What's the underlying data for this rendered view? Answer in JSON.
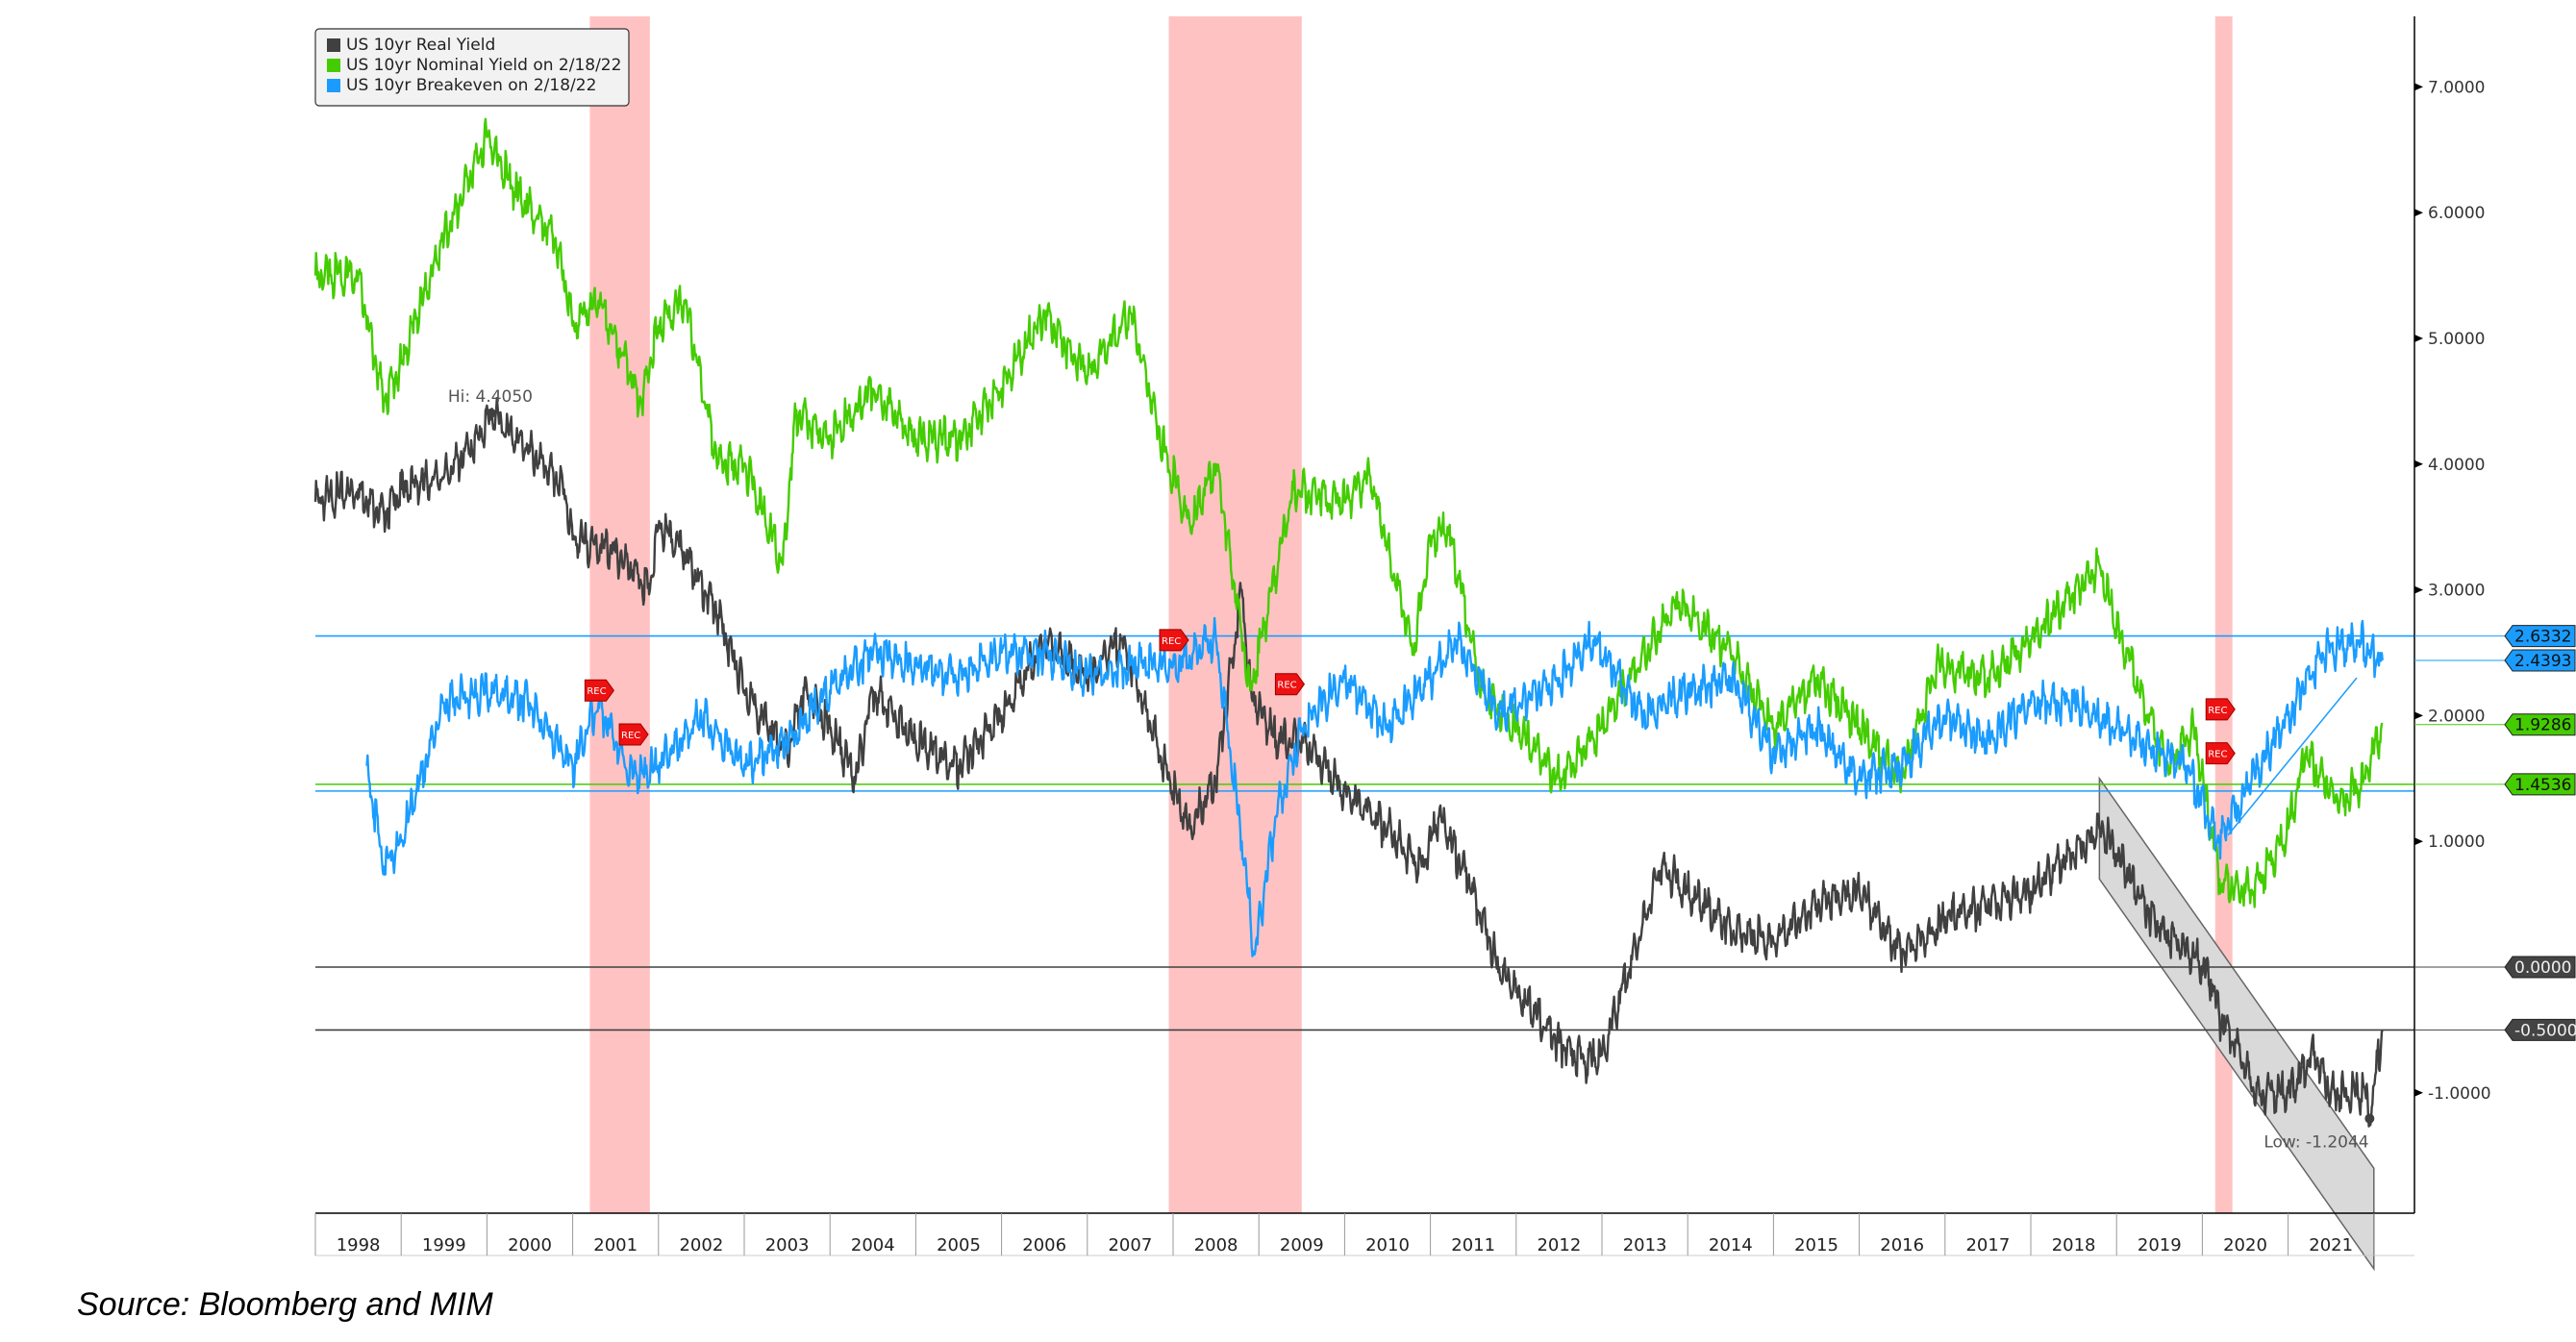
{
  "chart_data": {
    "type": "line",
    "title": "",
    "xlabel": "",
    "ylabel": "",
    "xlim": [
      1998,
      2022.3
    ],
    "ylim": [
      -1.96,
      7.56
    ],
    "y_ticks": [
      7,
      6,
      5,
      4,
      3,
      2,
      1,
      -1
    ],
    "y_tick_labels": [
      "7.0000",
      "6.0000",
      "5.0000",
      "4.0000",
      "3.0000",
      "2.0000",
      "1.0000",
      "-1.0000"
    ],
    "x_tick_labels": [
      "1998",
      "1999",
      "2000",
      "2001",
      "2002",
      "2003",
      "2004",
      "2005",
      "2006",
      "2007",
      "2008",
      "2009",
      "2010",
      "2011",
      "2012",
      "2013",
      "2014",
      "2015",
      "2016",
      "2017",
      "2018",
      "2019",
      "2020",
      "2021"
    ],
    "legend": {
      "placement": "top-left",
      "entries": [
        {
          "label": "US 10yr Real Yield",
          "color": "#404040"
        },
        {
          "label": "US 10yr Nominal Yield on 2/18/22",
          "color": "#44cc00"
        },
        {
          "label": "US 10yr Breakeven on 2/18/22",
          "color": "#1a9cff"
        }
      ]
    },
    "series": [
      {
        "name": "US 10yr Real Yield",
        "color": "#404040",
        "points": [
          [
            1998,
            3.7
          ],
          [
            1998.5,
            3.8
          ],
          [
            1998.8,
            3.6
          ],
          [
            1999,
            3.8
          ],
          [
            1999.5,
            3.9
          ],
          [
            1999.9,
            4.2
          ],
          [
            2000.05,
            4.405
          ],
          [
            2000.5,
            4.1
          ],
          [
            2000.9,
            3.8
          ],
          [
            2001,
            3.4
          ],
          [
            2001.5,
            3.3
          ],
          [
            2001.9,
            3.0
          ],
          [
            2002,
            3.5
          ],
          [
            2002.3,
            3.3
          ],
          [
            2002.7,
            2.8
          ],
          [
            2003,
            2.2
          ],
          [
            2003.5,
            1.7
          ],
          [
            2003.7,
            2.2
          ],
          [
            2004,
            1.9
          ],
          [
            2004.3,
            1.5
          ],
          [
            2004.5,
            2.2
          ],
          [
            2005,
            1.8
          ],
          [
            2005.5,
            1.6
          ],
          [
            2006,
            2.0
          ],
          [
            2006.5,
            2.6
          ],
          [
            2007,
            2.3
          ],
          [
            2007.4,
            2.6
          ],
          [
            2007.6,
            2.2
          ],
          [
            2008,
            1.4
          ],
          [
            2008.2,
            1.1
          ],
          [
            2008.5,
            1.5
          ],
          [
            2008.8,
            3.0
          ],
          [
            2008.9,
            2.2
          ],
          [
            2009.2,
            1.8
          ],
          [
            2009.5,
            1.8
          ],
          [
            2010,
            1.4
          ],
          [
            2010.5,
            1.1
          ],
          [
            2010.9,
            0.8
          ],
          [
            2011.1,
            1.2
          ],
          [
            2011.5,
            0.6
          ],
          [
            2011.8,
            0.0
          ],
          [
            2012,
            -0.2
          ],
          [
            2012.5,
            -0.6
          ],
          [
            2012.8,
            -0.75
          ],
          [
            2013,
            -0.7
          ],
          [
            2013.5,
            0.4
          ],
          [
            2013.7,
            0.8
          ],
          [
            2014,
            0.6
          ],
          [
            2014.5,
            0.3
          ],
          [
            2015,
            0.2
          ],
          [
            2015.5,
            0.5
          ],
          [
            2016,
            0.6
          ],
          [
            2016.5,
            0.1
          ],
          [
            2016.9,
            0.3
          ],
          [
            2017,
            0.4
          ],
          [
            2017.5,
            0.5
          ],
          [
            2018,
            0.6
          ],
          [
            2018.8,
            1.1
          ],
          [
            2019,
            0.9
          ],
          [
            2019.5,
            0.3
          ],
          [
            2019.9,
            0.1
          ],
          [
            2020.1,
            -0.1
          ],
          [
            2020.2,
            -0.4
          ],
          [
            2020.4,
            -0.6
          ],
          [
            2020.6,
            -1.0
          ],
          [
            2021,
            -1.0
          ],
          [
            2021.3,
            -0.7
          ],
          [
            2021.5,
            -1.0
          ],
          [
            2021.9,
            -1.0
          ],
          [
            2021.95,
            -1.2
          ],
          [
            2022.1,
            -0.5
          ]
        ]
      },
      {
        "name": "US 10yr Nominal Yield on 2/18/22",
        "color": "#44cc00",
        "points": [
          [
            1998,
            5.5
          ],
          [
            1998.5,
            5.5
          ],
          [
            1998.8,
            4.5
          ],
          [
            1999,
            4.8
          ],
          [
            1999.5,
            5.8
          ],
          [
            2000,
            6.6
          ],
          [
            2000.3,
            6.2
          ],
          [
            2000.8,
            5.8
          ],
          [
            2001,
            5.1
          ],
          [
            2001.3,
            5.3
          ],
          [
            2001.8,
            4.5
          ],
          [
            2002,
            5.1
          ],
          [
            2002.3,
            5.3
          ],
          [
            2002.7,
            4.0
          ],
          [
            2003,
            4.0
          ],
          [
            2003.45,
            3.2
          ],
          [
            2003.6,
            4.4
          ],
          [
            2004,
            4.2
          ],
          [
            2004.5,
            4.6
          ],
          [
            2005,
            4.2
          ],
          [
            2005.5,
            4.2
          ],
          [
            2006,
            4.6
          ],
          [
            2006.5,
            5.2
          ],
          [
            2007,
            4.7
          ],
          [
            2007.5,
            5.2
          ],
          [
            2007.9,
            4.1
          ],
          [
            2008.2,
            3.5
          ],
          [
            2008.5,
            4.0
          ],
          [
            2008.9,
            2.2
          ],
          [
            2009,
            2.5
          ],
          [
            2009.4,
            3.8
          ],
          [
            2010,
            3.7
          ],
          [
            2010.3,
            3.9
          ],
          [
            2010.8,
            2.5
          ],
          [
            2011,
            3.4
          ],
          [
            2011.2,
            3.5
          ],
          [
            2011.6,
            2.2
          ],
          [
            2012,
            1.9
          ],
          [
            2012.5,
            1.5
          ],
          [
            2013,
            1.9
          ],
          [
            2013.5,
            2.5
          ],
          [
            2013.9,
            2.9
          ],
          [
            2014.5,
            2.5
          ],
          [
            2015,
            1.9
          ],
          [
            2015.5,
            2.3
          ],
          [
            2016,
            1.9
          ],
          [
            2016.5,
            1.5
          ],
          [
            2016.9,
            2.4
          ],
          [
            2017.5,
            2.3
          ],
          [
            2018,
            2.6
          ],
          [
            2018.8,
            3.2
          ],
          [
            2019,
            2.7
          ],
          [
            2019.6,
            1.6
          ],
          [
            2019.9,
            1.9
          ],
          [
            2020.2,
            0.7
          ],
          [
            2020.6,
            0.6
          ],
          [
            2021,
            1.1
          ],
          [
            2021.2,
            1.7
          ],
          [
            2021.6,
            1.3
          ],
          [
            2021.9,
            1.5
          ],
          [
            2022.1,
            1.93
          ]
        ]
      },
      {
        "name": "US 10yr Breakeven on 2/18/22",
        "color": "#1a9cff",
        "points": [
          [
            1998.6,
            1.6
          ],
          [
            1998.8,
            0.8
          ],
          [
            1999,
            1.0
          ],
          [
            1999.5,
            2.1
          ],
          [
            2000,
            2.2
          ],
          [
            2000.5,
            2.1
          ],
          [
            2001,
            1.6
          ],
          [
            2001.3,
            2.1
          ],
          [
            2001.7,
            1.5
          ],
          [
            2002,
            1.6
          ],
          [
            2002.5,
            2.0
          ],
          [
            2003,
            1.6
          ],
          [
            2003.5,
            1.8
          ],
          [
            2004,
            2.2
          ],
          [
            2004.5,
            2.5
          ],
          [
            2005,
            2.4
          ],
          [
            2005.5,
            2.3
          ],
          [
            2006,
            2.5
          ],
          [
            2006.5,
            2.5
          ],
          [
            2007,
            2.3
          ],
          [
            2007.5,
            2.4
          ],
          [
            2008,
            2.4
          ],
          [
            2008.5,
            2.6
          ],
          [
            2008.8,
            1.0
          ],
          [
            2008.95,
            0.1
          ],
          [
            2009.2,
            1.2
          ],
          [
            2009.5,
            1.9
          ],
          [
            2010,
            2.3
          ],
          [
            2010.5,
            1.9
          ],
          [
            2011,
            2.3
          ],
          [
            2011.3,
            2.6
          ],
          [
            2011.8,
            2.0
          ],
          [
            2012.5,
            2.3
          ],
          [
            2012.9,
            2.6
          ],
          [
            2013.5,
            2.0
          ],
          [
            2014,
            2.2
          ],
          [
            2014.5,
            2.3
          ],
          [
            2015,
            1.7
          ],
          [
            2015.5,
            1.9
          ],
          [
            2016,
            1.5
          ],
          [
            2016.5,
            1.6
          ],
          [
            2017,
            2.0
          ],
          [
            2017.5,
            1.8
          ],
          [
            2018,
            2.1
          ],
          [
            2018.5,
            2.1
          ],
          [
            2019,
            1.9
          ],
          [
            2019.8,
            1.6
          ],
          [
            2020.2,
            1.0
          ],
          [
            2020.5,
            1.4
          ],
          [
            2021,
            2.0
          ],
          [
            2021.4,
            2.5
          ],
          [
            2021.8,
            2.6
          ],
          [
            2022.1,
            2.44
          ]
        ]
      }
    ],
    "recessions": [
      [
        2001.2,
        2001.9
      ],
      [
        2007.95,
        2009.5
      ],
      [
        2020.15,
        2020.35
      ]
    ],
    "rec_label": "REC",
    "rec_markers": [
      {
        "x": 2001.3,
        "y": 2.2,
        "series": "US 10yr Breakeven on 2/18/22"
      },
      {
        "x": 2001.7,
        "y": 1.85,
        "series": "US 10yr Breakeven on 2/18/22"
      },
      {
        "x": 2008.0,
        "y": 2.6,
        "series": "US 10yr Real Yield"
      },
      {
        "x": 2009.35,
        "y": 2.25,
        "series": "US 10yr Nominal Yield on 2/18/22"
      },
      {
        "x": 2020.2,
        "y": 2.05,
        "series": "US 10yr Nominal Yield on 2/18/22"
      },
      {
        "x": 2020.2,
        "y": 1.7,
        "series": "US 10yr Breakeven on 2/18/22"
      }
    ],
    "hlines": [
      {
        "value": 2.6332,
        "color": "#1a9cff"
      },
      {
        "value": 1.4,
        "color": "#1a9cff"
      },
      {
        "value": 1.4536,
        "color": "#44cc00"
      },
      {
        "value": 0,
        "color": "#404040"
      },
      {
        "value": -0.5,
        "color": "#404040"
      }
    ],
    "last_value_tags": [
      {
        "label": "2.6332",
        "value": 2.6332,
        "color": "#1a9cff"
      },
      {
        "label": "2.4393",
        "value": 2.4393,
        "color": "#1a9cff"
      },
      {
        "label": "1.9286",
        "value": 1.9286,
        "color": "#44cc00"
      },
      {
        "label": "1.4536",
        "value": 1.4536,
        "color": "#44cc00"
      },
      {
        "label": "0.0000",
        "value": 0,
        "color": "#444444"
      },
      {
        "label": "-0.5000",
        "value": -0.5,
        "color": "#444444"
      }
    ],
    "annotations": [
      {
        "text": "Hi: 4.4050",
        "x": 2000.05,
        "y": 4.405
      },
      {
        "text": "Low: -1.2044",
        "x": 2021.95,
        "y": -1.2044
      }
    ],
    "channel": {
      "from": [
        2018.8,
        1.1
      ],
      "to": [
        2022.0,
        -2.0
      ],
      "width": 0.8
    },
    "trendline": {
      "from": [
        2020.3,
        1.05
      ],
      "to": [
        2021.8,
        2.3
      ],
      "color": "#1a9cff"
    }
  },
  "source": "Source: Bloomberg and MIM"
}
